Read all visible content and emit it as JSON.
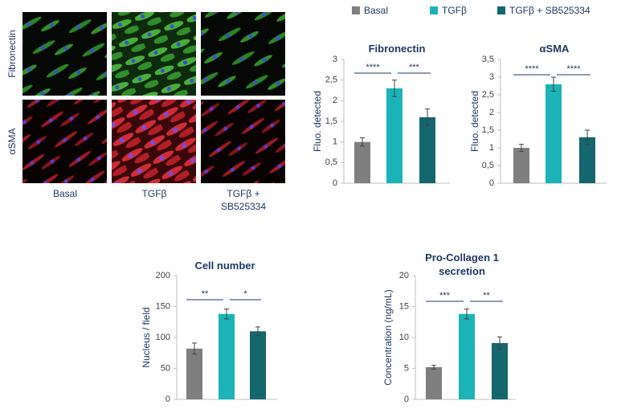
{
  "legend": {
    "items": [
      {
        "name": "Basal",
        "color": "#7f7f7f"
      },
      {
        "name": "TGFβ",
        "color": "#1ab3b8"
      },
      {
        "name": "TGFβ + SB525334",
        "color": "#13676d"
      }
    ]
  },
  "chart_data": [
    {
      "type": "bar",
      "title": "Fibronectin",
      "ylabel": "Fluo. detected",
      "values": [
        1.0,
        2.3,
        1.6
      ],
      "errors": [
        0.1,
        0.2,
        0.2
      ],
      "ylim": [
        0,
        3
      ],
      "yticks": [
        0,
        {
          "value": 0.5,
          "label": "0,5"
        },
        1,
        {
          "value": 1.5,
          "label": "1,5"
        },
        2,
        {
          "value": 2.5,
          "label": "2,5"
        },
        3
      ],
      "significance": [
        "****",
        "***"
      ]
    },
    {
      "type": "bar",
      "title": "αSMA",
      "ylabel": "Fluo. detected",
      "values": [
        1.0,
        2.8,
        1.3
      ],
      "errors": [
        0.1,
        0.2,
        0.2
      ],
      "ylim": [
        0,
        3.5
      ],
      "yticks": [
        0,
        {
          "value": 0.5,
          "label": "0,5"
        },
        1,
        {
          "value": 1.5,
          "label": "1,5"
        },
        2,
        {
          "value": 2.5,
          "label": "2,5"
        },
        3,
        {
          "value": 3.5,
          "label": "3,5"
        }
      ],
      "significance": [
        "****",
        "****"
      ]
    },
    {
      "type": "bar",
      "title": "Cell number",
      "ylabel": "Nucleus / field",
      "values": [
        82,
        138,
        110
      ],
      "errors": [
        9,
        8,
        7
      ],
      "ylim": [
        0,
        200
      ],
      "yticks": [
        0,
        50,
        100,
        150,
        200
      ],
      "significance": [
        "**",
        "*"
      ]
    },
    {
      "type": "bar",
      "title": "Pro-Collagen 1 secretion",
      "ylabel": "Concentration (ng/mL)",
      "values": [
        5.2,
        13.8,
        9.1
      ],
      "errors": [
        0.3,
        0.8,
        1.0
      ],
      "ylim": [
        0,
        20
      ],
      "yticks": [
        0,
        5,
        10,
        15,
        20
      ],
      "significance": [
        "***",
        "**"
      ]
    }
  ]
}
